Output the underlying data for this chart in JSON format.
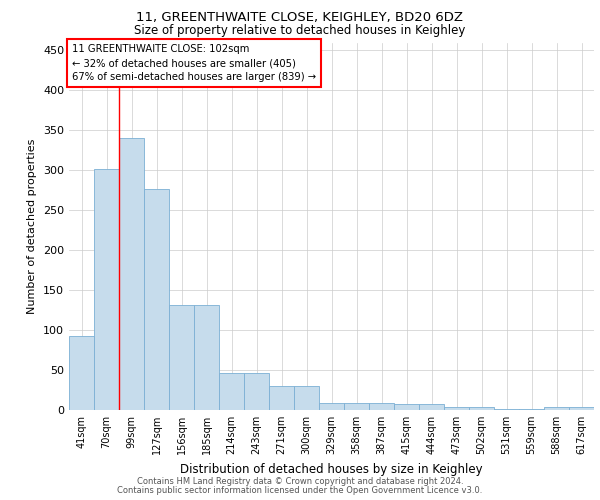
{
  "title_line1": "11, GREENTHWAITE CLOSE, KEIGHLEY, BD20 6DZ",
  "title_line2": "Size of property relative to detached houses in Keighley",
  "xlabel": "Distribution of detached houses by size in Keighley",
  "ylabel": "Number of detached properties",
  "categories": [
    "41sqm",
    "70sqm",
    "99sqm",
    "127sqm",
    "156sqm",
    "185sqm",
    "214sqm",
    "243sqm",
    "271sqm",
    "300sqm",
    "329sqm",
    "358sqm",
    "387sqm",
    "415sqm",
    "444sqm",
    "473sqm",
    "502sqm",
    "531sqm",
    "559sqm",
    "588sqm",
    "617sqm"
  ],
  "values": [
    93,
    302,
    341,
    277,
    131,
    131,
    46,
    46,
    30,
    30,
    9,
    9,
    9,
    8,
    8,
    4,
    4,
    1,
    1,
    4,
    4
  ],
  "bar_color": "#c6dcec",
  "bar_edge_color": "#7bafd4",
  "annotation_box": {
    "text_line1": "11 GREENTHWAITE CLOSE: 102sqm",
    "text_line2": "← 32% of detached houses are smaller (405)",
    "text_line3": "67% of semi-detached houses are larger (839) →",
    "box_color": "white",
    "edge_color": "red"
  },
  "footer_line1": "Contains HM Land Registry data © Crown copyright and database right 2024.",
  "footer_line2": "Contains public sector information licensed under the Open Government Licence v3.0.",
  "ylim": [
    0,
    460
  ],
  "yticks": [
    0,
    50,
    100,
    150,
    200,
    250,
    300,
    350,
    400,
    450
  ],
  "background_color": "white",
  "grid_color": "#cccccc",
  "red_line_x": 1.5
}
